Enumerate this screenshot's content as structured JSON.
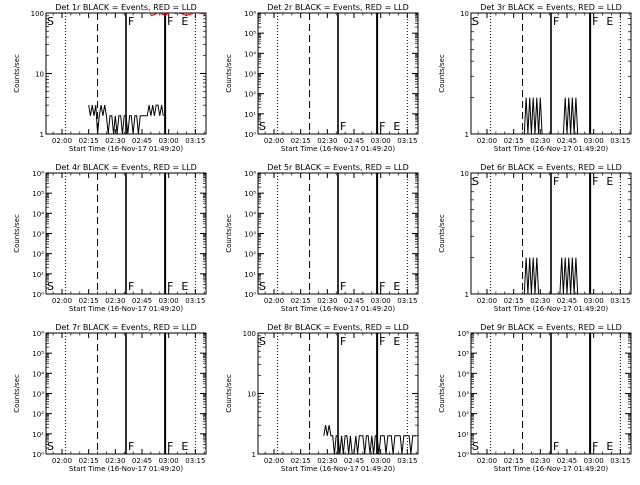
{
  "chart_data": [
    {
      "type": "line",
      "title": "Det 1r BLACK = Events, RED = LLD",
      "xlabel": "Start Time (16-Nov-17 01:49:20)",
      "ylabel": "Counts/sec",
      "scale": "log",
      "ylim": [
        1,
        100
      ],
      "yticks": [
        {
          "v": 1,
          "t": "1"
        },
        {
          "v": 10,
          "t": "10"
        },
        {
          "v": 100,
          "t": "100"
        }
      ],
      "xticks": [
        "02:00",
        "02:15",
        "02:30",
        "02:45",
        "03:00",
        "03:15"
      ],
      "xlim_min": [
        111,
        201
      ],
      "markers": {
        "dot1": 122,
        "dash": 140,
        "solid1": 156,
        "solid2": 178,
        "dot2": 195
      },
      "marker_labels": {
        "s": "S",
        "f": "F",
        "e": "E"
      },
      "events": {
        "x": [
          135,
          136,
          137,
          138,
          139,
          140,
          141,
          142,
          143,
          144,
          145,
          146,
          147,
          148,
          149,
          150,
          151,
          152,
          153,
          154,
          155,
          156,
          157,
          158,
          159,
          160,
          161,
          162,
          163,
          164,
          165,
          166,
          167,
          168,
          169,
          170,
          171,
          172,
          173,
          174,
          175,
          176,
          177
        ],
        "y": [
          3,
          2,
          3,
          2,
          3,
          1,
          2,
          3,
          2,
          3,
          2,
          1,
          2,
          2,
          1,
          2,
          1,
          2,
          2,
          1,
          2,
          2,
          1,
          2,
          2,
          1,
          2,
          2,
          1,
          2,
          2,
          2,
          2,
          2,
          3,
          2,
          3,
          2,
          3,
          3,
          2,
          3,
          2
        ]
      },
      "lld": {
        "x": [
          170,
          172,
          174,
          176,
          178,
          180,
          182,
          184,
          186,
          188,
          190,
          192,
          194,
          196,
          198,
          200
        ],
        "y": [
          90,
          95,
          100,
          97,
          92,
          99,
          101,
          98,
          100,
          96,
          91,
          95,
          100,
          102,
          98,
          97
        ]
      }
    },
    {
      "type": "line",
      "title": "Det 2r BLACK = Events, RED = LLD",
      "xlabel": "Start Time (16-Nov-17 01:49:20)",
      "ylabel": "Counts/sec",
      "scale": "log",
      "ylim": [
        1,
        1000000
      ],
      "yticks": [
        {
          "v": 1,
          "t": "10⁰"
        },
        {
          "v": 10,
          "t": "10¹"
        },
        {
          "v": 100,
          "t": "10²"
        },
        {
          "v": 1000,
          "t": "10³"
        },
        {
          "v": 10000,
          "t": "10⁴"
        },
        {
          "v": 100000,
          "t": "10⁵"
        },
        {
          "v": 1000000,
          "t": "10⁶"
        }
      ],
      "xticks": [
        "02:00",
        "02:15",
        "02:30",
        "02:45",
        "03:00",
        "03:15"
      ],
      "xlim_min": [
        111,
        201
      ],
      "markers": {
        "dot1": 122,
        "dash": 140,
        "solid1": 156,
        "solid2": 178,
        "dot2": 195
      },
      "marker_labels": {
        "s": "S",
        "f": "F",
        "e": "E"
      },
      "events": {
        "x": [],
        "y": []
      },
      "lld": {
        "x": [],
        "y": []
      }
    },
    {
      "type": "line",
      "title": "Det 3r BLACK = Events, RED = LLD",
      "xlabel": "Start Time (16-Nov-17 01:49:20)",
      "ylabel": "Counts/sec",
      "scale": "log",
      "ylim": [
        1,
        10
      ],
      "yticks": [
        {
          "v": 1,
          "t": "1"
        },
        {
          "v": 10,
          "t": "10"
        }
      ],
      "xticks": [
        "02:00",
        "02:15",
        "02:30",
        "02:45",
        "03:00",
        "03:15"
      ],
      "xlim_min": [
        111,
        201
      ],
      "markers": {
        "dot1": 122,
        "dash": 140,
        "solid1": 156,
        "solid2": 178,
        "dot2": 195
      },
      "marker_labels": {
        "s": "S",
        "f": "F",
        "e": "E"
      },
      "events": {
        "x": [
          141,
          142,
          143,
          144,
          145,
          146,
          147,
          148,
          149,
          150,
          151,
          152,
          153,
          154,
          155,
          156,
          157,
          158,
          159,
          160,
          161,
          162,
          163,
          164,
          165,
          166,
          167,
          168,
          169,
          170,
          171
        ],
        "y": [
          1,
          2,
          1,
          2,
          1,
          2,
          1,
          2,
          1,
          2,
          1,
          1,
          1,
          1,
          1,
          1,
          1,
          1,
          1,
          1,
          1,
          1,
          1,
          2,
          1,
          2,
          1,
          2,
          1,
          2,
          1
        ]
      },
      "lld": {
        "x": [],
        "y": []
      }
    },
    {
      "type": "line",
      "title": "Det 4r BLACK = Events, RED = LLD",
      "xlabel": "Start Time (16-Nov-17 01:49:20)",
      "ylabel": "Counts/sec",
      "scale": "log",
      "ylim": [
        1,
        1000000
      ],
      "yticks": [
        {
          "v": 1,
          "t": "10⁰"
        },
        {
          "v": 10,
          "t": "10¹"
        },
        {
          "v": 100,
          "t": "10²"
        },
        {
          "v": 1000,
          "t": "10³"
        },
        {
          "v": 10000,
          "t": "10⁴"
        },
        {
          "v": 100000,
          "t": "10⁵"
        },
        {
          "v": 1000000,
          "t": "10⁶"
        }
      ],
      "xticks": [
        "02:00",
        "02:15",
        "02:30",
        "02:45",
        "03:00",
        "03:15"
      ],
      "xlim_min": [
        111,
        201
      ],
      "markers": {
        "dot1": 122,
        "dash": 140,
        "solid1": 156,
        "solid2": 178,
        "dot2": 195
      },
      "marker_labels": {
        "s": "S",
        "f": "F",
        "e": "E"
      },
      "events": {
        "x": [],
        "y": []
      },
      "lld": {
        "x": [],
        "y": []
      }
    },
    {
      "type": "line",
      "title": "Det 5r BLACK = Events, RED = LLD",
      "xlabel": "Start Time (16-Nov-17 01:49:20)",
      "ylabel": "Counts/sec",
      "scale": "log",
      "ylim": [
        1,
        1000000
      ],
      "yticks": [
        {
          "v": 1,
          "t": "10⁰"
        },
        {
          "v": 10,
          "t": "10¹"
        },
        {
          "v": 100,
          "t": "10²"
        },
        {
          "v": 1000,
          "t": "10³"
        },
        {
          "v": 10000,
          "t": "10⁴"
        },
        {
          "v": 100000,
          "t": "10⁵"
        },
        {
          "v": 1000000,
          "t": "10⁶"
        }
      ],
      "xticks": [
        "02:00",
        "02:15",
        "02:30",
        "02:45",
        "03:00",
        "03:15"
      ],
      "xlim_min": [
        111,
        201
      ],
      "markers": {
        "dot1": 122,
        "dash": 140,
        "solid1": 156,
        "solid2": 178,
        "dot2": 195
      },
      "marker_labels": {
        "s": "S",
        "f": "F",
        "e": "E"
      },
      "events": {
        "x": [],
        "y": []
      },
      "lld": {
        "x": [],
        "y": []
      }
    },
    {
      "type": "line",
      "title": "Det 6r BLACK = Events, RED = LLD",
      "xlabel": "Start Time (16-Nov-17 01:49:20)",
      "ylabel": "Counts/sec",
      "scale": "log",
      "ylim": [
        1,
        10
      ],
      "yticks": [
        {
          "v": 1,
          "t": "1"
        },
        {
          "v": 10,
          "t": "10"
        }
      ],
      "xticks": [
        "02:00",
        "02:15",
        "02:30",
        "02:45",
        "03:00",
        "03:15"
      ],
      "xlim_min": [
        111,
        201
      ],
      "markers": {
        "dot1": 122,
        "dash": 140,
        "solid1": 156,
        "solid2": 178,
        "dot2": 195
      },
      "marker_labels": {
        "s": "S",
        "f": "F",
        "e": "E"
      },
      "events": {
        "x": [
          141,
          142,
          143,
          144,
          145,
          146,
          147,
          148,
          149,
          150,
          151,
          152,
          153,
          154,
          155,
          156,
          157,
          158,
          159,
          160,
          161,
          162,
          163,
          164,
          165,
          166,
          167,
          168,
          169,
          170,
          171
        ],
        "y": [
          1,
          2,
          1,
          2,
          1,
          2,
          1,
          2,
          1,
          1,
          1,
          1,
          1,
          1,
          1,
          1,
          1,
          1,
          1,
          1,
          1,
          2,
          1,
          2,
          1,
          2,
          1,
          2,
          1,
          2,
          1
        ]
      },
      "lld": {
        "x": [],
        "y": []
      }
    },
    {
      "type": "line",
      "title": "Det 7r BLACK = Events, RED = LLD",
      "xlabel": "Start Time (16-Nov-17 01:49:20)",
      "ylabel": "Counts/sec",
      "scale": "log",
      "ylim": [
        1,
        1000000
      ],
      "yticks": [
        {
          "v": 1,
          "t": "10⁰"
        },
        {
          "v": 10,
          "t": "10¹"
        },
        {
          "v": 100,
          "t": "10²"
        },
        {
          "v": 1000,
          "t": "10³"
        },
        {
          "v": 10000,
          "t": "10⁴"
        },
        {
          "v": 100000,
          "t": "10⁵"
        },
        {
          "v": 1000000,
          "t": "10⁶"
        }
      ],
      "xticks": [
        "02:00",
        "02:15",
        "02:30",
        "02:45",
        "03:00",
        "03:15"
      ],
      "xlim_min": [
        111,
        201
      ],
      "markers": {
        "dot1": 122,
        "dash": 140,
        "solid1": 156,
        "solid2": 178,
        "dot2": 195
      },
      "marker_labels": {
        "s": "S",
        "f": "F",
        "e": "E"
      },
      "events": {
        "x": [],
        "y": []
      },
      "lld": {
        "x": [],
        "y": []
      }
    },
    {
      "type": "line",
      "title": "Det 8r BLACK = Events, RED = LLD",
      "xlabel": "Start Time (16-Nov-17 01:49:20)",
      "ylabel": "Counts/sec",
      "scale": "log",
      "ylim": [
        1,
        100
      ],
      "yticks": [
        {
          "v": 1,
          "t": "1"
        },
        {
          "v": 10,
          "t": "10"
        },
        {
          "v": 100,
          "t": "100"
        }
      ],
      "xticks": [
        "02:00",
        "02:15",
        "02:30",
        "02:45",
        "03:00",
        "03:15"
      ],
      "xlim_min": [
        111,
        201
      ],
      "markers": {
        "dot1": 122,
        "dash": 140,
        "solid1": 156,
        "solid2": 178,
        "dot2": 195
      },
      "marker_labels": {
        "s": "S",
        "f": "F",
        "e": "E"
      },
      "events": {
        "x": [
          148,
          149,
          150,
          151,
          152,
          153,
          154,
          155,
          156,
          157,
          158,
          159,
          160,
          161,
          162,
          163,
          164,
          165,
          166,
          167,
          168,
          169,
          170,
          171,
          172,
          173,
          174,
          175,
          176,
          177,
          178,
          179,
          180,
          181,
          182,
          183,
          184,
          185,
          186,
          187,
          188,
          189,
          190,
          191,
          192,
          193,
          194,
          195,
          196,
          197,
          198,
          199,
          200
        ],
        "y": [
          2,
          3,
          2,
          3,
          2,
          2,
          1,
          2,
          2,
          1,
          2,
          1,
          2,
          2,
          1,
          2,
          1,
          1,
          2,
          1,
          2,
          2,
          2,
          1,
          2,
          2,
          1,
          2,
          1,
          2,
          2,
          1,
          2,
          2,
          2,
          1,
          2,
          2,
          2,
          1,
          2,
          2,
          2,
          2,
          1,
          2,
          2,
          2,
          2,
          1,
          2,
          2,
          2
        ]
      },
      "lld": {
        "x": [],
        "y": []
      }
    },
    {
      "type": "line",
      "title": "Det 9r BLACK = Events, RED = LLD",
      "xlabel": "Start Time (16-Nov-17 01:49:20)",
      "ylabel": "Counts/sec",
      "scale": "log",
      "ylim": [
        1,
        1000000
      ],
      "yticks": [
        {
          "v": 1,
          "t": "10⁰"
        },
        {
          "v": 10,
          "t": "10¹"
        },
        {
          "v": 100,
          "t": "10²"
        },
        {
          "v": 1000,
          "t": "10³"
        },
        {
          "v": 10000,
          "t": "10⁴"
        },
        {
          "v": 100000,
          "t": "10⁵"
        },
        {
          "v": 1000000,
          "t": "10⁶"
        }
      ],
      "xticks": [
        "02:00",
        "02:15",
        "02:30",
        "02:45",
        "03:00",
        "03:15"
      ],
      "xlim_min": [
        111,
        201
      ],
      "markers": {
        "dot1": 122,
        "dash": 140,
        "solid1": 156,
        "solid2": 178,
        "dot2": 195
      },
      "marker_labels": {
        "s": "S",
        "f": "F",
        "e": "E"
      },
      "events": {
        "x": [],
        "y": []
      },
      "lld": {
        "x": [],
        "y": []
      }
    }
  ],
  "colors": {
    "events": "#000000",
    "lld": "#ff0000",
    "background": "#ffffff"
  }
}
